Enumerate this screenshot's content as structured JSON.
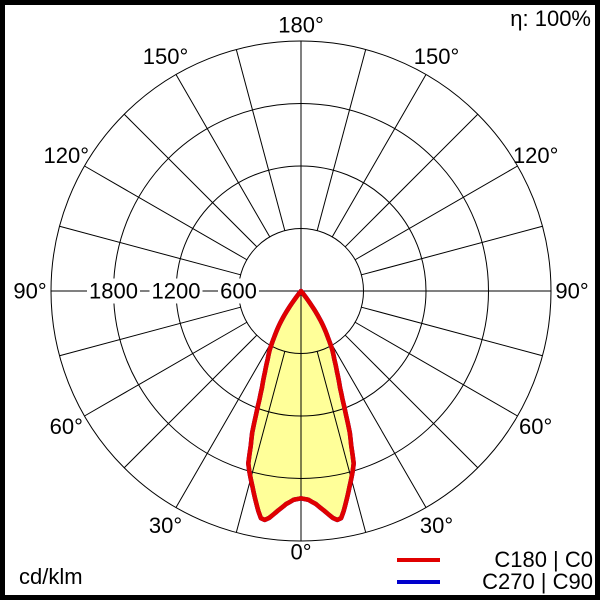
{
  "header": {
    "efficiency_label": "η: 100%"
  },
  "footer": {
    "unit_label": "cd/klm"
  },
  "legend": {
    "items": [
      {
        "name": "C180 | C0",
        "label": "C180 | C0",
        "color": "#e00000"
      },
      {
        "name": "C270 | C90",
        "label": "C270 | C90",
        "color": "#0000cc"
      }
    ]
  },
  "chart_data": {
    "type": "polar_photometric",
    "title": "Luminous intensity distribution",
    "unit": "cd/klm",
    "efficiency": "100%",
    "rlim": [
      0,
      2400
    ],
    "ring_values": [
      600,
      1200,
      1800,
      2400
    ],
    "ring_axis_labels": [
      "1800",
      "1200",
      "600"
    ],
    "spoke_step_deg": 15,
    "grid_color": "#000000",
    "angle_labels": [
      {
        "text": "0°",
        "angle": 0
      },
      {
        "text": "30°",
        "angle": 30
      },
      {
        "text": "30°",
        "angle": 330
      },
      {
        "text": "60°",
        "angle": 60
      },
      {
        "text": "60°",
        "angle": 300
      },
      {
        "text": "90°",
        "angle": 90
      },
      {
        "text": "90°",
        "angle": 270
      },
      {
        "text": "120°",
        "angle": 120
      },
      {
        "text": "120°",
        "angle": 240
      },
      {
        "text": "150°",
        "angle": 150
      },
      {
        "text": "150°",
        "angle": 210
      },
      {
        "text": "180°",
        "angle": 180
      }
    ],
    "series": [
      {
        "name": "C180 | C0",
        "color": "#e00000",
        "fill": "#ffff99",
        "symmetric": true,
        "angles_deg": [
          0,
          2,
          4,
          6,
          8,
          9,
          10,
          11,
          12,
          14,
          16,
          17,
          18,
          19,
          20,
          21,
          22,
          24,
          26,
          28,
          30,
          32,
          33,
          34,
          35,
          36,
          37,
          38,
          39,
          45,
          60,
          75,
          90,
          120,
          150,
          180
        ],
        "values": [
          1990,
          2005,
          2050,
          2120,
          2200,
          2225,
          2215,
          2150,
          2075,
          1930,
          1800,
          1730,
          1560,
          1440,
          1260,
          1110,
          1000,
          850,
          730,
          640,
          520,
          420,
          370,
          310,
          250,
          180,
          110,
          50,
          0,
          0,
          0,
          0,
          0,
          0,
          0,
          0
        ]
      },
      {
        "name": "C270 | C90",
        "color": "#0000cc",
        "fill": "none",
        "same_as": 0
      }
    ]
  }
}
